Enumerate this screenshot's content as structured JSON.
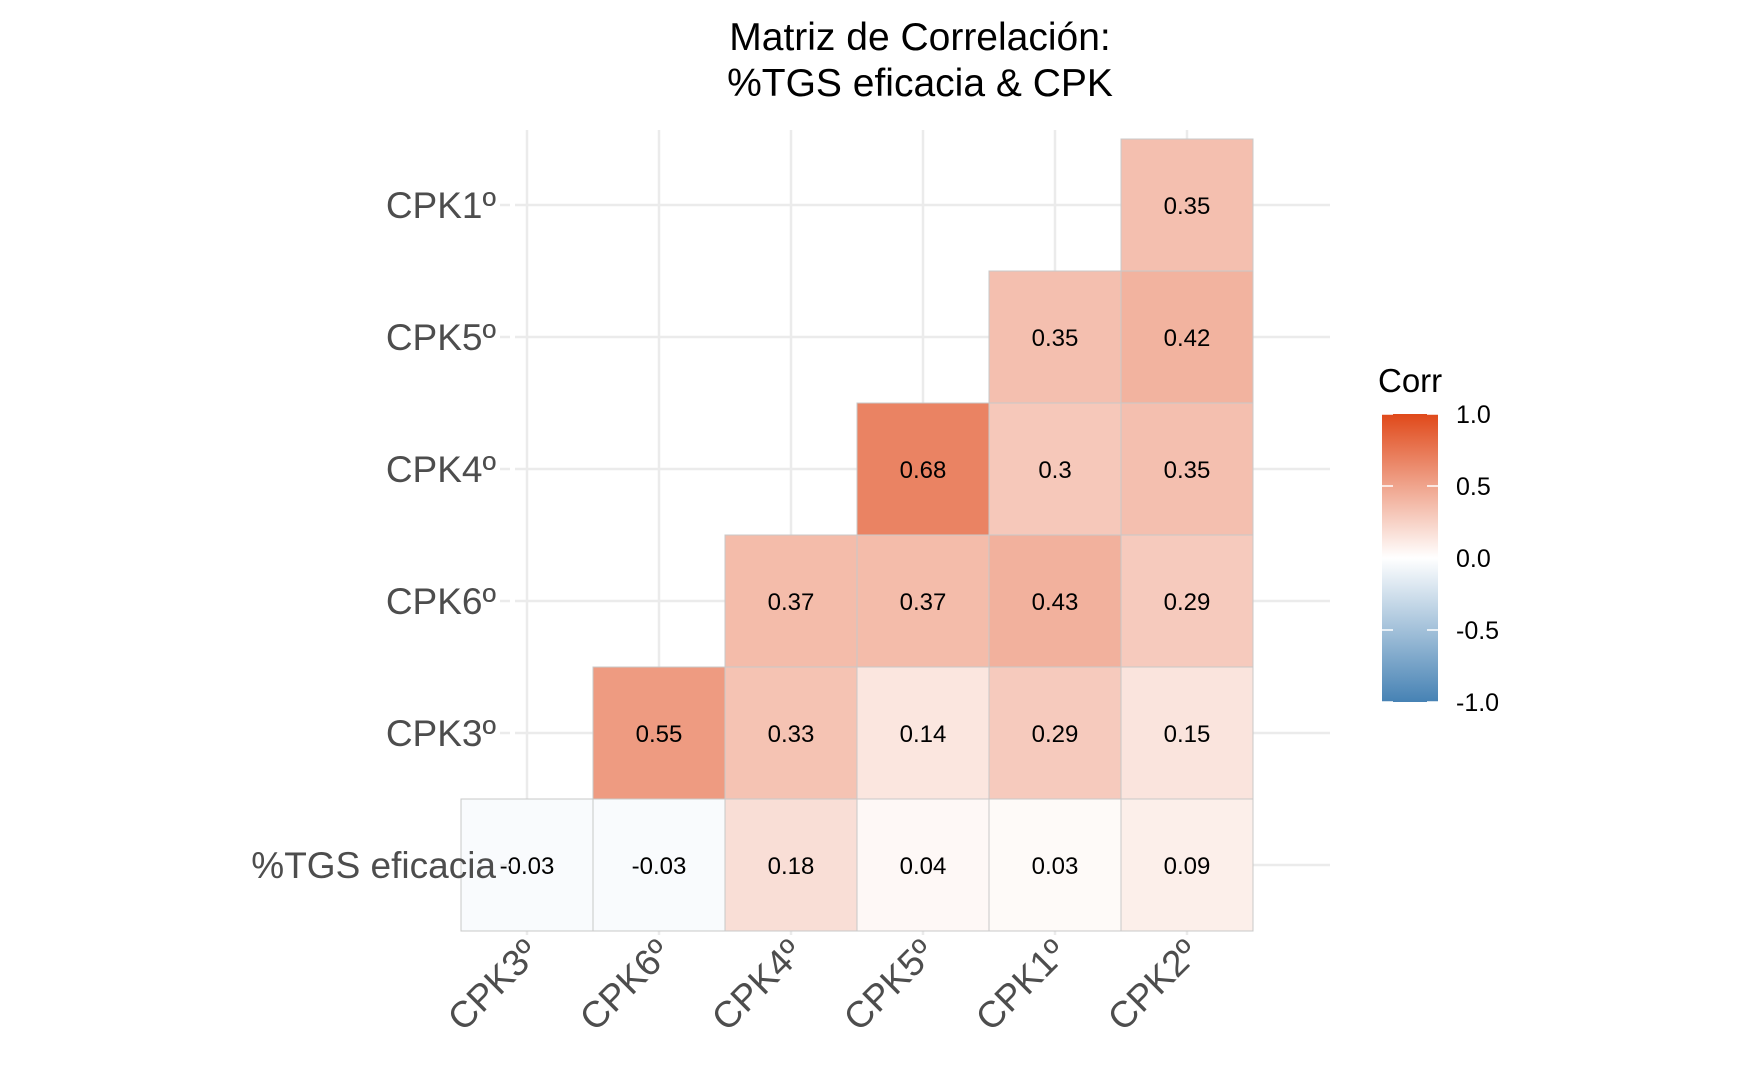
{
  "chart_data": {
    "type": "heatmap",
    "title_line1": "Matriz de Correlación:",
    "title_line2": "%TGS eficacia & CPK",
    "xlabel": "",
    "ylabel": "",
    "x_categories": [
      "CPK3º",
      "CPK6º",
      "CPK4º",
      "CPK5º",
      "CPK1º",
      "CPK2º"
    ],
    "y_categories": [
      "%TGS eficacia",
      "CPK3º",
      "CPK6º",
      "CPK4º",
      "CPK5º",
      "CPK1º"
    ],
    "cells": [
      {
        "x": "CPK3º",
        "y": "%TGS eficacia",
        "value": -0.03,
        "label": "-0.03"
      },
      {
        "x": "CPK6º",
        "y": "%TGS eficacia",
        "value": -0.03,
        "label": "-0.03"
      },
      {
        "x": "CPK4º",
        "y": "%TGS eficacia",
        "value": 0.18,
        "label": "0.18"
      },
      {
        "x": "CPK5º",
        "y": "%TGS eficacia",
        "value": 0.04,
        "label": "0.04"
      },
      {
        "x": "CPK1º",
        "y": "%TGS eficacia",
        "value": 0.03,
        "label": "0.03"
      },
      {
        "x": "CPK2º",
        "y": "%TGS eficacia",
        "value": 0.09,
        "label": "0.09"
      },
      {
        "x": "CPK6º",
        "y": "CPK3º",
        "value": 0.55,
        "label": "0.55"
      },
      {
        "x": "CPK4º",
        "y": "CPK3º",
        "value": 0.33,
        "label": "0.33"
      },
      {
        "x": "CPK5º",
        "y": "CPK3º",
        "value": 0.14,
        "label": "0.14"
      },
      {
        "x": "CPK1º",
        "y": "CPK3º",
        "value": 0.29,
        "label": "0.29"
      },
      {
        "x": "CPK2º",
        "y": "CPK3º",
        "value": 0.15,
        "label": "0.15"
      },
      {
        "x": "CPK4º",
        "y": "CPK6º",
        "value": 0.37,
        "label": "0.37"
      },
      {
        "x": "CPK5º",
        "y": "CPK6º",
        "value": 0.37,
        "label": "0.37"
      },
      {
        "x": "CPK1º",
        "y": "CPK6º",
        "value": 0.43,
        "label": "0.43"
      },
      {
        "x": "CPK2º",
        "y": "CPK6º",
        "value": 0.29,
        "label": "0.29"
      },
      {
        "x": "CPK5º",
        "y": "CPK4º",
        "value": 0.68,
        "label": "0.68"
      },
      {
        "x": "CPK1º",
        "y": "CPK4º",
        "value": 0.3,
        "label": "0.3"
      },
      {
        "x": "CPK2º",
        "y": "CPK4º",
        "value": 0.35,
        "label": "0.35"
      },
      {
        "x": "CPK1º",
        "y": "CPK5º",
        "value": 0.35,
        "label": "0.35"
      },
      {
        "x": "CPK2º",
        "y": "CPK5º",
        "value": 0.42,
        "label": "0.42"
      },
      {
        "x": "CPK2º",
        "y": "CPK1º",
        "value": 0.35,
        "label": "0.35"
      }
    ],
    "legend": {
      "title": "Corr",
      "placement": "right",
      "ticks": [
        {
          "value": 1.0,
          "label": "1.0"
        },
        {
          "value": 0.5,
          "label": "0.5"
        },
        {
          "value": 0.0,
          "label": "0.0"
        },
        {
          "value": -0.5,
          "label": "-0.5"
        },
        {
          "value": -1.0,
          "label": "-1.0"
        }
      ],
      "range": [
        -1,
        1
      ]
    },
    "colors": {
      "low": "#4682b4",
      "mid": "#ffffff",
      "high": "#e0491a"
    },
    "grid": true
  }
}
